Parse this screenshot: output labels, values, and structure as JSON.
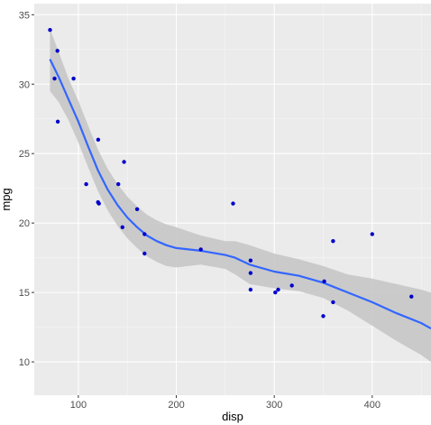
{
  "chart_data": {
    "type": "scatter",
    "title": "",
    "xlabel": "disp",
    "ylabel": "mpg",
    "xlim": [
      55,
      460
    ],
    "ylim": [
      7.6,
      35.8
    ],
    "x_ticks": [
      100,
      200,
      300,
      400
    ],
    "y_ticks": [
      10,
      15,
      20,
      25,
      30,
      35
    ],
    "grid": true,
    "legend": "none",
    "points": [
      {
        "x": 71.1,
        "y": 33.9
      },
      {
        "x": 75.7,
        "y": 30.4
      },
      {
        "x": 78.7,
        "y": 32.4
      },
      {
        "x": 79.0,
        "y": 27.3
      },
      {
        "x": 95.1,
        "y": 30.4
      },
      {
        "x": 108.0,
        "y": 22.8
      },
      {
        "x": 120.1,
        "y": 21.5
      },
      {
        "x": 120.3,
        "y": 26.0
      },
      {
        "x": 121.0,
        "y": 21.4
      },
      {
        "x": 140.8,
        "y": 22.8
      },
      {
        "x": 145.0,
        "y": 19.7
      },
      {
        "x": 146.7,
        "y": 24.4
      },
      {
        "x": 160.0,
        "y": 21.0
      },
      {
        "x": 167.6,
        "y": 19.2
      },
      {
        "x": 167.6,
        "y": 17.8
      },
      {
        "x": 225.0,
        "y": 18.1
      },
      {
        "x": 258.0,
        "y": 21.4
      },
      {
        "x": 275.8,
        "y": 17.3
      },
      {
        "x": 275.8,
        "y": 16.4
      },
      {
        "x": 275.8,
        "y": 15.2
      },
      {
        "x": 301.0,
        "y": 15.0
      },
      {
        "x": 304.0,
        "y": 15.2
      },
      {
        "x": 318.0,
        "y": 15.5
      },
      {
        "x": 350.0,
        "y": 13.3
      },
      {
        "x": 351.0,
        "y": 15.8
      },
      {
        "x": 360.0,
        "y": 18.7
      },
      {
        "x": 360.0,
        "y": 14.3
      },
      {
        "x": 400.0,
        "y": 19.2
      },
      {
        "x": 440.0,
        "y": 14.7
      }
    ],
    "smooth": {
      "x": [
        71,
        80,
        90,
        100,
        110,
        120,
        130,
        140,
        150,
        160,
        170,
        180,
        190,
        200,
        225,
        250,
        260,
        275,
        300,
        325,
        350,
        375,
        400,
        425,
        450,
        460
      ],
      "y": [
        31.8,
        30.5,
        28.9,
        27.3,
        25.5,
        23.8,
        22.4,
        21.3,
        20.4,
        19.7,
        19.1,
        18.7,
        18.4,
        18.2,
        18.0,
        17.7,
        17.5,
        17.0,
        16.5,
        16.2,
        15.7,
        15.0,
        14.3,
        13.5,
        12.8,
        12.4
      ],
      "lower": [
        29.5,
        28.7,
        27.4,
        25.8,
        24.0,
        22.3,
        20.9,
        19.8,
        18.9,
        18.2,
        17.6,
        17.2,
        16.9,
        16.8,
        17.0,
        16.7,
        16.3,
        15.6,
        15.3,
        15.1,
        14.6,
        13.7,
        12.6,
        11.5,
        10.5,
        10.0
      ],
      "upper": [
        34.0,
        32.3,
        30.4,
        28.8,
        27.0,
        25.3,
        23.9,
        22.8,
        21.9,
        21.2,
        20.6,
        20.2,
        19.9,
        19.7,
        19.1,
        18.7,
        18.7,
        18.4,
        17.8,
        17.4,
        16.9,
        16.3,
        16.0,
        15.6,
        15.2,
        15.0
      ]
    },
    "colors": {
      "panel_background": "#ebebeb",
      "grid_major": "#ffffff",
      "grid_minor": "#f5f5f5",
      "points": "#0000cd",
      "smooth_line": "#3366ff",
      "ribbon": "#c6c6c6"
    }
  }
}
